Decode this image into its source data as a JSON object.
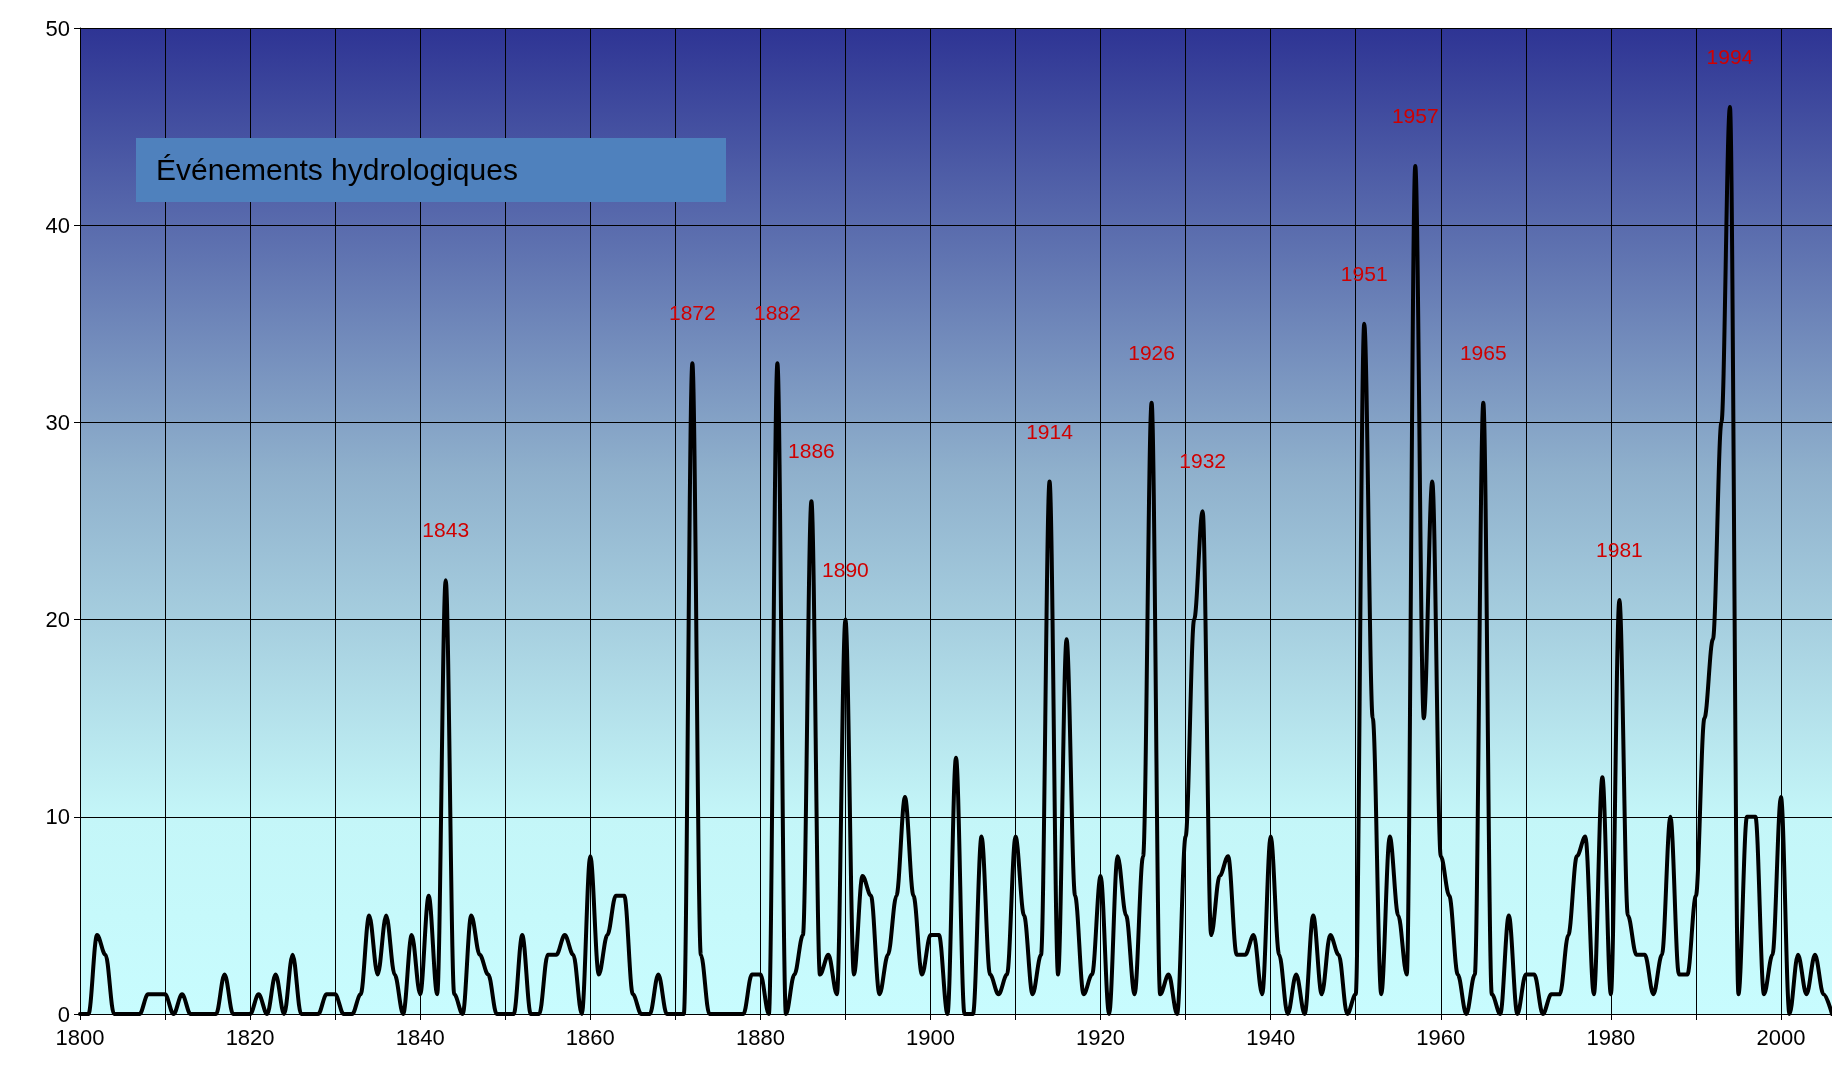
{
  "chart_data": {
    "type": "line",
    "title": "Événements hydrologiques",
    "x": [
      1800,
      1801,
      1802,
      1803,
      1804,
      1805,
      1806,
      1807,
      1808,
      1809,
      1810,
      1811,
      1812,
      1813,
      1814,
      1815,
      1816,
      1817,
      1818,
      1819,
      1820,
      1821,
      1822,
      1823,
      1824,
      1825,
      1826,
      1827,
      1828,
      1829,
      1830,
      1831,
      1832,
      1833,
      1834,
      1835,
      1836,
      1837,
      1838,
      1839,
      1840,
      1841,
      1842,
      1843,
      1844,
      1845,
      1846,
      1847,
      1848,
      1849,
      1850,
      1851,
      1852,
      1853,
      1854,
      1855,
      1856,
      1857,
      1858,
      1859,
      1860,
      1861,
      1862,
      1863,
      1864,
      1865,
      1866,
      1867,
      1868,
      1869,
      1870,
      1871,
      1872,
      1873,
      1874,
      1875,
      1876,
      1877,
      1878,
      1879,
      1880,
      1881,
      1882,
      1883,
      1884,
      1885,
      1886,
      1887,
      1888,
      1889,
      1890,
      1891,
      1892,
      1893,
      1894,
      1895,
      1896,
      1897,
      1898,
      1899,
      1900,
      1901,
      1902,
      1903,
      1904,
      1905,
      1906,
      1907,
      1908,
      1909,
      1910,
      1911,
      1912,
      1913,
      1914,
      1915,
      1916,
      1917,
      1918,
      1919,
      1920,
      1921,
      1922,
      1923,
      1924,
      1925,
      1926,
      1927,
      1928,
      1929,
      1930,
      1931,
      1932,
      1933,
      1934,
      1935,
      1936,
      1937,
      1938,
      1939,
      1940,
      1941,
      1942,
      1943,
      1944,
      1945,
      1946,
      1947,
      1948,
      1949,
      1950,
      1951,
      1952,
      1953,
      1954,
      1955,
      1956,
      1957,
      1958,
      1959,
      1960,
      1961,
      1962,
      1963,
      1964,
      1965,
      1966,
      1967,
      1968,
      1969,
      1970,
      1971,
      1972,
      1973,
      1974,
      1975,
      1976,
      1977,
      1978,
      1979,
      1980,
      1981,
      1982,
      1983,
      1984,
      1985,
      1986,
      1987,
      1988,
      1989,
      1990,
      1991,
      1992,
      1993,
      1994,
      1995,
      1996,
      1997,
      1998,
      1999,
      2000,
      2001,
      2002,
      2003,
      2004,
      2005,
      2006
    ],
    "series": [
      {
        "color": "#000000",
        "values": [
          0,
          0,
          4,
          3,
          0,
          0,
          0,
          0,
          1,
          1,
          1,
          0,
          1,
          0,
          0,
          0,
          0,
          2,
          0,
          0,
          0,
          1,
          0,
          2,
          0,
          3,
          0,
          0,
          0,
          1,
          1,
          0,
          0,
          1,
          5,
          2,
          5,
          2,
          0,
          4,
          1,
          6,
          1,
          22,
          1,
          0,
          5,
          3,
          2,
          0,
          0,
          0,
          4,
          0,
          0,
          3,
          3,
          4,
          3,
          0,
          8,
          2,
          4,
          6,
          6,
          1,
          0,
          0,
          2,
          0,
          0,
          0,
          33,
          3,
          0,
          0,
          0,
          0,
          0,
          2,
          2,
          0,
          33,
          0,
          2,
          4,
          26,
          2,
          3,
          1,
          20,
          2,
          7,
          6,
          1,
          3,
          6,
          11,
          6,
          2,
          4,
          4,
          0,
          13,
          0,
          0,
          9,
          2,
          1,
          2,
          9,
          5,
          1,
          3,
          27,
          2,
          19,
          6,
          1,
          2,
          7,
          0,
          8,
          5,
          1,
          8,
          31,
          1,
          2,
          0,
          9,
          20,
          25.5,
          4,
          7,
          8,
          3,
          3,
          4,
          1,
          9,
          3,
          0,
          2,
          0,
          5,
          1,
          4,
          3,
          0,
          1,
          35,
          15,
          1,
          9,
          5,
          2,
          43,
          15,
          27,
          8,
          6,
          2,
          0,
          2,
          31,
          1,
          0,
          5,
          0,
          2,
          2,
          0,
          1,
          1,
          4,
          8,
          9,
          1,
          12,
          1,
          21,
          5,
          3,
          3,
          1,
          3,
          10,
          2,
          2,
          6,
          15,
          19,
          30,
          46,
          1,
          10,
          10,
          1,
          3,
          11,
          0,
          3,
          1,
          3,
          1,
          0
        ]
      }
    ],
    "xlim": [
      1800,
      2006
    ],
    "xticks": [
      1800,
      {
        "value": 1810,
        "label": null
      },
      1820,
      {
        "value": 1830,
        "label": null
      },
      1840,
      {
        "value": 1850,
        "label": null
      },
      1860,
      {
        "value": 1870,
        "label": null
      },
      1880,
      {
        "value": 1890,
        "label": null
      },
      1900,
      {
        "value": 1910,
        "label": null
      },
      1920,
      {
        "value": 1930,
        "label": null
      },
      1940,
      {
        "value": 1950,
        "label": null
      },
      1960,
      {
        "value": 1970,
        "label": null
      },
      1980,
      {
        "value": 1990,
        "label": null
      },
      2000
    ],
    "ylim": [
      0,
      50
    ],
    "yticks": [
      0,
      10,
      20,
      30,
      40,
      50
    ],
    "grid": true,
    "marker": "none",
    "line_style": "solid",
    "annotations": [
      {
        "text": "1843",
        "x": 1843,
        "y": 22
      },
      {
        "text": "1872",
        "x": 1872,
        "y": 33
      },
      {
        "text": "1882",
        "x": 1882,
        "y": 33
      },
      {
        "text": "1886",
        "x": 1886,
        "y": 26
      },
      {
        "text": "1890",
        "x": 1890,
        "y": 20
      },
      {
        "text": "1914",
        "x": 1914,
        "y": 27
      },
      {
        "text": "1926",
        "x": 1926,
        "y": 31
      },
      {
        "text": "1932",
        "x": 1932,
        "y": 25.5
      },
      {
        "text": "1951",
        "x": 1951,
        "y": 35
      },
      {
        "text": "1957",
        "x": 1957,
        "y": 43
      },
      {
        "text": "1965",
        "x": 1965,
        "y": 31
      },
      {
        "text": "1981",
        "x": 1981,
        "y": 21
      },
      {
        "text": "1994",
        "x": 1994,
        "y": 46
      }
    ]
  }
}
